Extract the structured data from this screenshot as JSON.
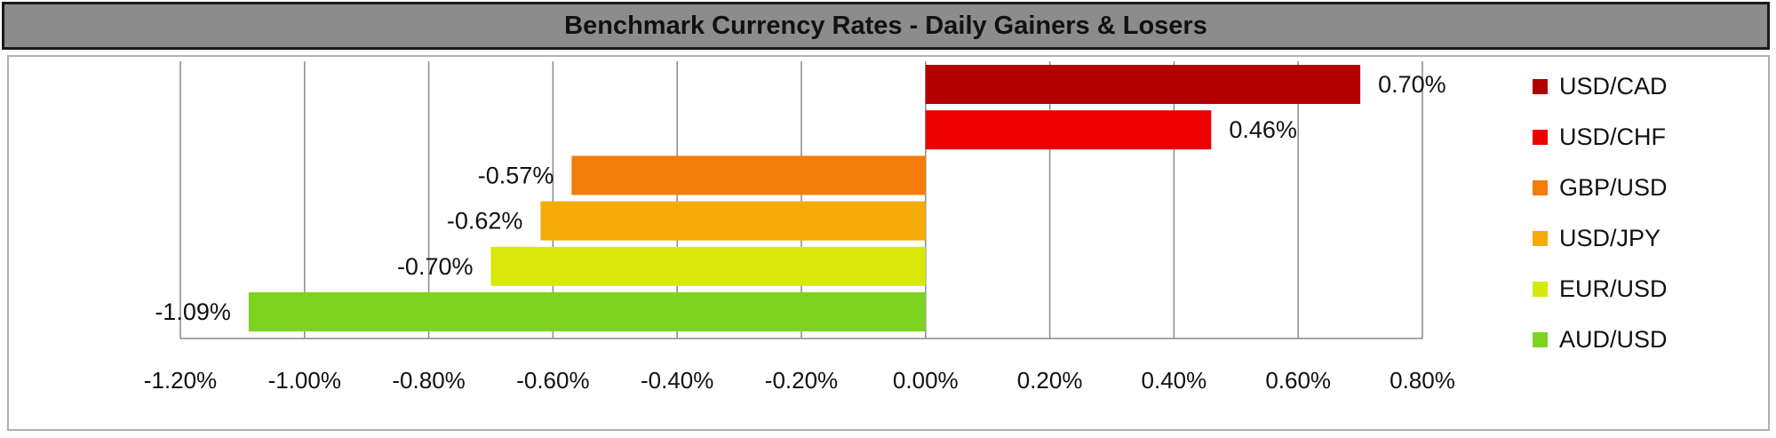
{
  "chart_data": {
    "type": "bar",
    "orientation": "horizontal",
    "title": "Benchmark Currency Rates - Daily Gainers & Losers",
    "categories": [
      "USD/CAD",
      "USD/CHF",
      "GBP/USD",
      "USD/JPY",
      "EUR/USD",
      "AUD/USD"
    ],
    "values": [
      0.7,
      0.46,
      -0.57,
      -0.62,
      -0.7,
      -1.09
    ],
    "value_labels": [
      "0.70%",
      "0.46%",
      "-0.57%",
      "-0.62%",
      "-0.70%",
      "-1.09%"
    ],
    "colors": [
      "#b30000",
      "#ee0000",
      "#f37c0a",
      "#f5ab0c",
      "#d8e80a",
      "#7ed321"
    ],
    "xlim": [
      -1.2,
      0.8
    ],
    "x_ticks": [
      -1.2,
      -1.0,
      -0.8,
      -0.6,
      -0.4,
      -0.2,
      0.0,
      0.2,
      0.4,
      0.6,
      0.8
    ],
    "x_tick_labels": [
      "-1.20%",
      "-1.00%",
      "-0.80%",
      "-0.60%",
      "-0.40%",
      "-0.20%",
      "0.00%",
      "0.20%",
      "0.40%",
      "0.60%",
      "0.80%"
    ],
    "grid": "vertical",
    "legend_position": "right"
  }
}
